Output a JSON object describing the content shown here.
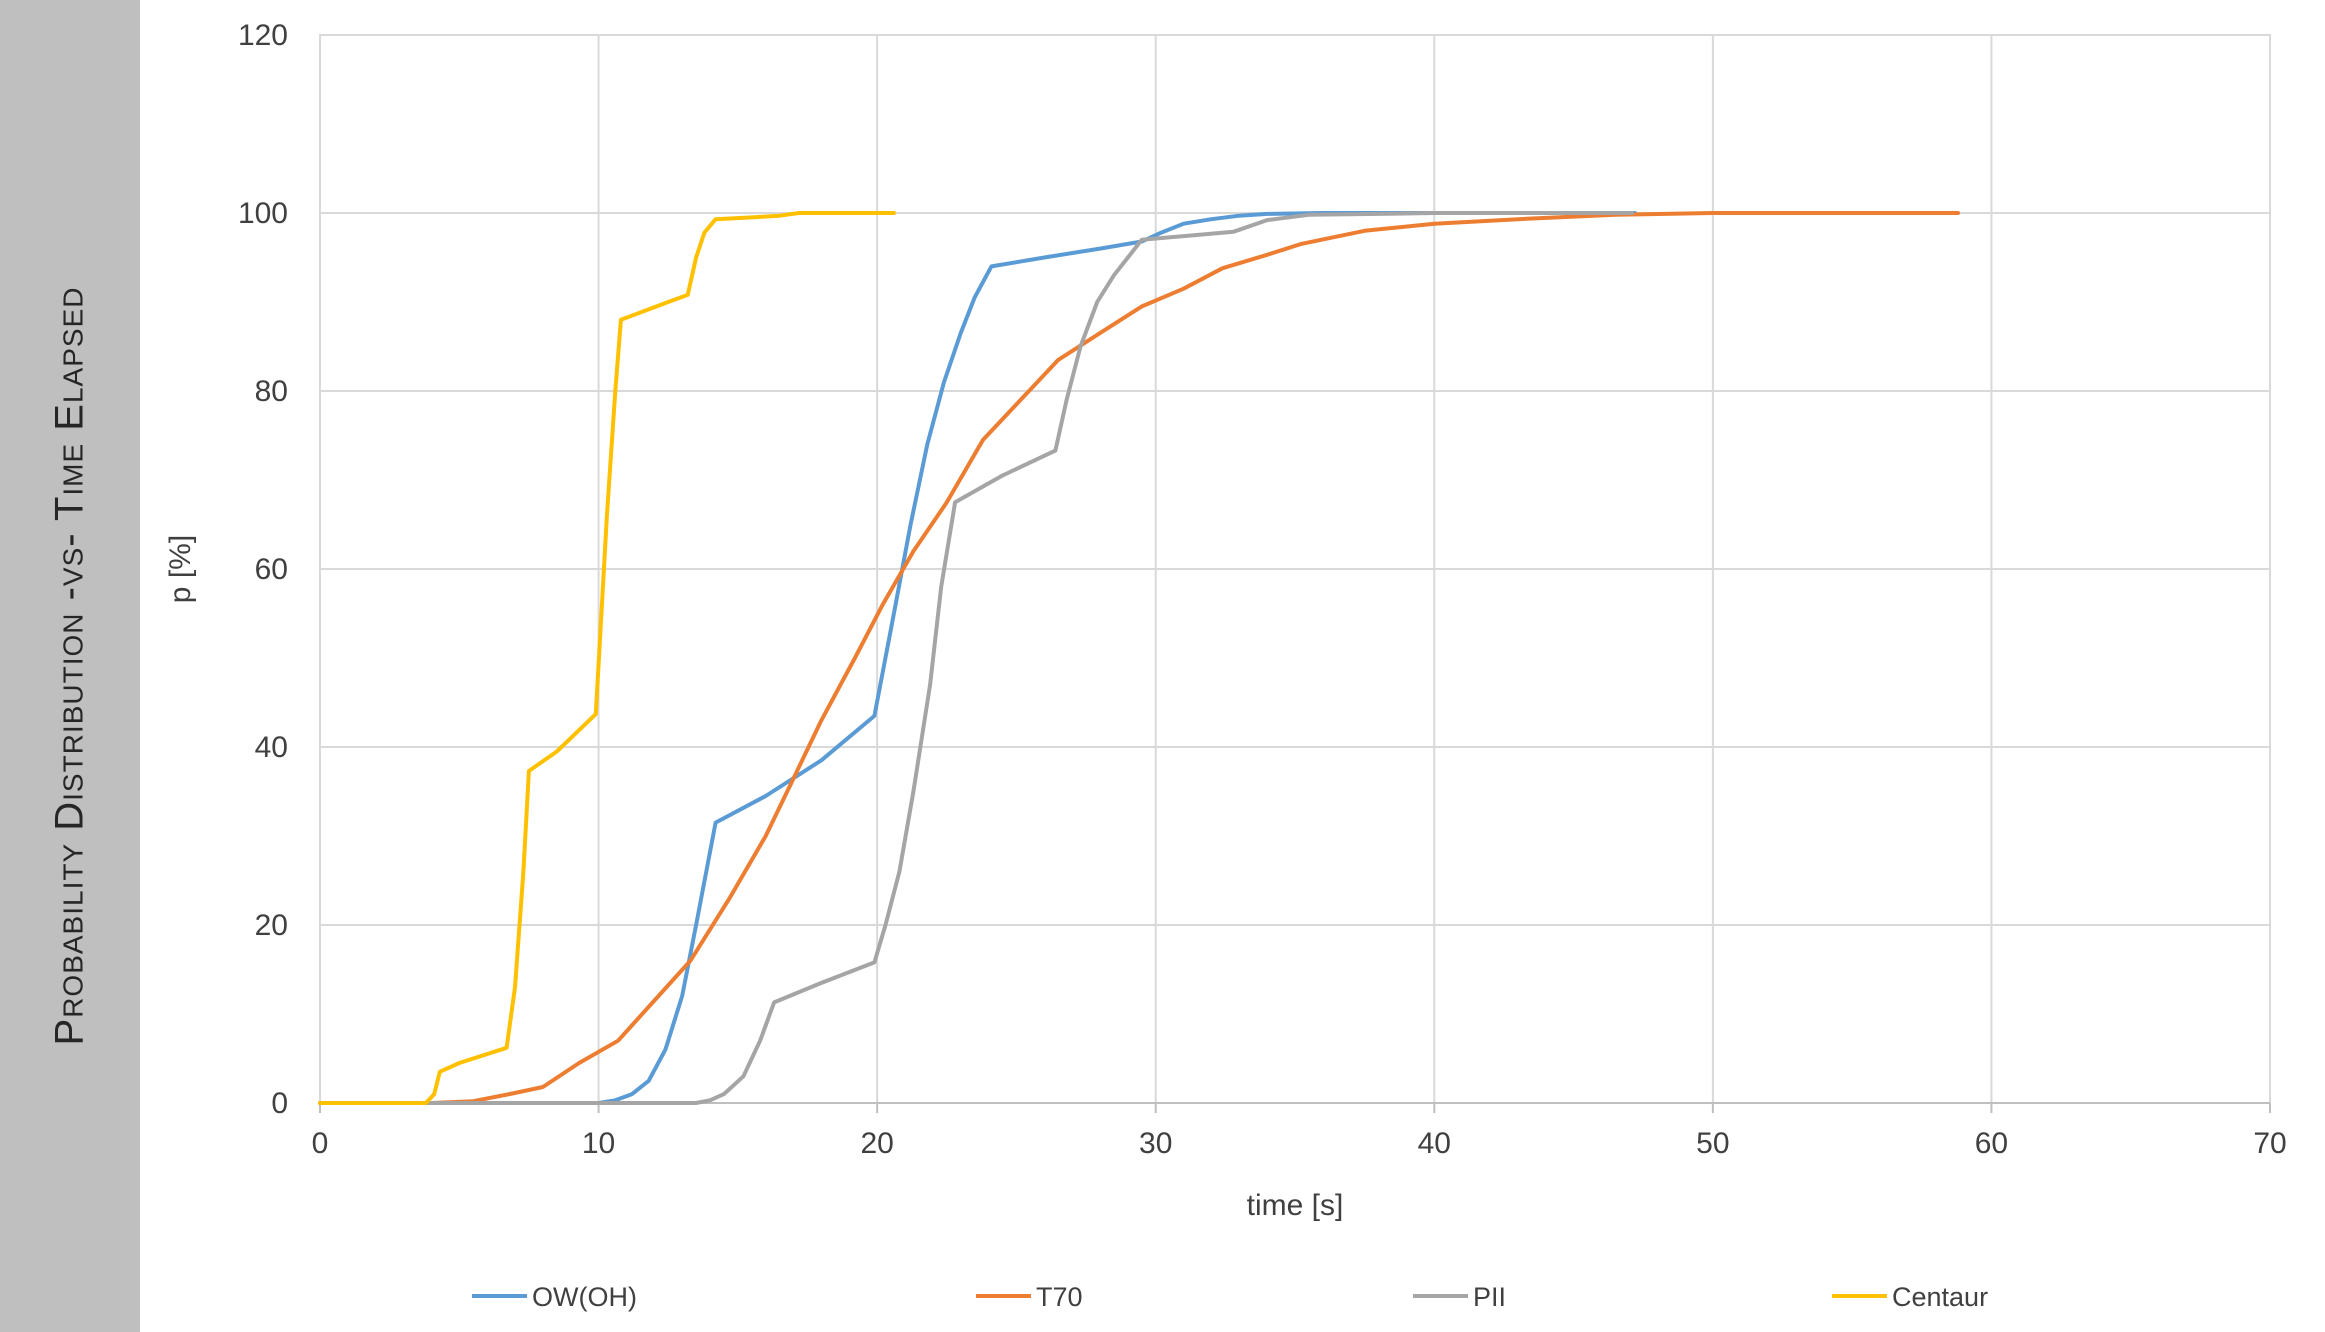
{
  "chart_data": {
    "type": "line",
    "title": "Probability Distribution -vs- Time Elapsed",
    "xlabel": "time [s]",
    "ylabel": "p [%]",
    "xlim": [
      0,
      70
    ],
    "ylim": [
      0,
      120
    ],
    "x_ticks": [
      "0",
      "10",
      "20",
      "30",
      "40",
      "50",
      "60",
      "70"
    ],
    "y_ticks": [
      "0",
      "20",
      "40",
      "60",
      "80",
      "100",
      "120"
    ],
    "grid": true,
    "legend_position": "bottom",
    "series": [
      {
        "name": "OW(OH)",
        "color": "#5b9bd5",
        "points": [
          [
            0,
            0
          ],
          [
            10,
            0
          ],
          [
            10.6,
            0.3
          ],
          [
            11.2,
            1
          ],
          [
            11.8,
            2.5
          ],
          [
            12.4,
            6
          ],
          [
            13,
            12
          ],
          [
            13.5,
            20
          ],
          [
            14.2,
            31.5
          ],
          [
            16,
            34.5
          ],
          [
            18,
            38.5
          ],
          [
            19.9,
            43.5
          ],
          [
            20.6,
            55
          ],
          [
            21.2,
            65
          ],
          [
            21.8,
            74
          ],
          [
            22.4,
            81
          ],
          [
            23,
            86.5
          ],
          [
            23.5,
            90.5
          ],
          [
            24.1,
            94
          ],
          [
            26,
            95
          ],
          [
            28,
            96
          ],
          [
            29.5,
            96.8
          ],
          [
            30.2,
            97.8
          ],
          [
            31,
            98.8
          ],
          [
            32,
            99.3
          ],
          [
            33,
            99.7
          ],
          [
            34,
            99.9
          ],
          [
            36,
            100
          ],
          [
            40,
            100
          ],
          [
            47.2,
            100
          ]
        ]
      },
      {
        "name": "T70",
        "color": "#ed7d31",
        "points": [
          [
            0,
            0
          ],
          [
            4,
            0
          ],
          [
            5.5,
            0.2
          ],
          [
            6.8,
            1
          ],
          [
            8,
            1.8
          ],
          [
            9.3,
            4.5
          ],
          [
            10.7,
            7
          ],
          [
            12,
            11.5
          ],
          [
            13.3,
            16
          ],
          [
            14.7,
            23
          ],
          [
            16,
            30
          ],
          [
            17,
            36.5
          ],
          [
            18,
            43
          ],
          [
            19.2,
            50
          ],
          [
            20.2,
            56
          ],
          [
            21.3,
            62
          ],
          [
            22.5,
            67.5
          ],
          [
            23.8,
            74.5
          ],
          [
            25,
            78.5
          ],
          [
            26.5,
            83.5
          ],
          [
            28,
            86.5
          ],
          [
            29.5,
            89.5
          ],
          [
            31,
            91.5
          ],
          [
            32.4,
            93.8
          ],
          [
            34,
            95.3
          ],
          [
            35.2,
            96.5
          ],
          [
            37.5,
            98
          ],
          [
            40,
            98.8
          ],
          [
            43,
            99.3
          ],
          [
            46.5,
            99.8
          ],
          [
            50,
            100
          ],
          [
            55,
            100
          ],
          [
            58.8,
            100
          ]
        ]
      },
      {
        "name": "PII",
        "color": "#a5a5a5",
        "points": [
          [
            0,
            0
          ],
          [
            13.5,
            0
          ],
          [
            14,
            0.3
          ],
          [
            14.5,
            1
          ],
          [
            15.2,
            3
          ],
          [
            15.8,
            7
          ],
          [
            16.3,
            11.3
          ],
          [
            18,
            13.5
          ],
          [
            19.9,
            15.8
          ],
          [
            20.3,
            20
          ],
          [
            20.8,
            26
          ],
          [
            21.3,
            35
          ],
          [
            21.9,
            47
          ],
          [
            22.3,
            58
          ],
          [
            22.8,
            67.5
          ],
          [
            24.5,
            70.5
          ],
          [
            26.4,
            73.3
          ],
          [
            26.8,
            79
          ],
          [
            27.3,
            85
          ],
          [
            27.9,
            90
          ],
          [
            28.5,
            93
          ],
          [
            29,
            95
          ],
          [
            29.5,
            97
          ],
          [
            31,
            97.4
          ],
          [
            32.8,
            97.9
          ],
          [
            34,
            99.2
          ],
          [
            35.5,
            99.8
          ],
          [
            38,
            99.9
          ],
          [
            40,
            100
          ],
          [
            47.1,
            100
          ]
        ]
      },
      {
        "name": "Centaur",
        "color": "#ffc000",
        "points": [
          [
            0,
            0
          ],
          [
            3.8,
            0
          ],
          [
            4.1,
            1
          ],
          [
            4.3,
            3.5
          ],
          [
            5,
            4.5
          ],
          [
            6.7,
            6.2
          ],
          [
            7,
            13
          ],
          [
            7.3,
            26
          ],
          [
            7.5,
            37.3
          ],
          [
            8.5,
            39.5
          ],
          [
            9.9,
            43.7
          ],
          [
            10.3,
            66
          ],
          [
            10.6,
            80
          ],
          [
            10.8,
            88
          ],
          [
            12.5,
            90
          ],
          [
            13.2,
            90.8
          ],
          [
            13.5,
            95
          ],
          [
            13.8,
            97.8
          ],
          [
            14.2,
            99.3
          ],
          [
            15.5,
            99.5
          ],
          [
            16.5,
            99.7
          ],
          [
            17.2,
            100
          ],
          [
            19,
            100
          ],
          [
            20.6,
            100
          ]
        ]
      }
    ]
  }
}
